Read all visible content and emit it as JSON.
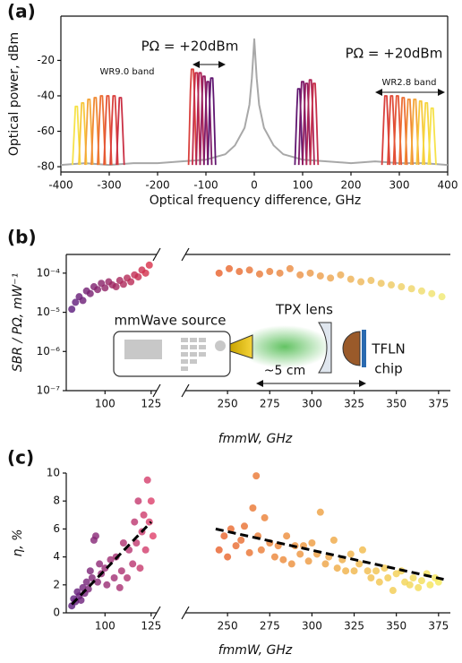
{
  "chart_data": [
    {
      "type": "line",
      "panel_label": "(a)",
      "xlabel": "Optical frequency difference, GHz",
      "ylabel": "Optical power, dBm",
      "xlim": [
        -400,
        400
      ],
      "ylim": [
        -83,
        5
      ],
      "xticks": [
        -400,
        -300,
        -200,
        -100,
        0,
        100,
        200,
        300,
        400
      ],
      "yticks": [
        -80,
        -60,
        -40,
        -20
      ],
      "annotations": [
        "PΩ = +20dBm",
        "WR9.0 band",
        "PΩ = +20dBm",
        "WR2.8 band"
      ],
      "series": [
        {
          "color": "#a8a8a8",
          "x": [
            -400,
            -350,
            -300,
            -250,
            -200,
            -150,
            -100,
            -60,
            -40,
            -20,
            -10,
            -5,
            0,
            5,
            10,
            20,
            40,
            60,
            100,
            150,
            200,
            250,
            300,
            350,
            400
          ],
          "values": [
            -79,
            -78,
            -79,
            -78,
            -78,
            -77,
            -76,
            -73,
            -68,
            -58,
            -45,
            -30,
            -8,
            -30,
            -45,
            -58,
            -68,
            -73,
            -76,
            -77,
            -78,
            -77,
            -78,
            -78,
            -79
          ]
        },
        {
          "color": "#f6e24a",
          "x": [
            -376,
            -372,
            -370,
            -366,
            -364,
            -360
          ],
          "values": [
            -79,
            -58,
            -46,
            -46,
            -58,
            -79
          ]
        },
        {
          "color": "#f7c83c",
          "x": [
            -363,
            -359,
            -357,
            -353,
            -351,
            -347
          ],
          "values": [
            -79,
            -56,
            -44,
            -44,
            -56,
            -79
          ]
        },
        {
          "color": "#f4a63a",
          "x": [
            -350,
            -346,
            -344,
            -340,
            -338,
            -334
          ],
          "values": [
            -79,
            -54,
            -42,
            -42,
            -54,
            -79
          ]
        },
        {
          "color": "#f08a34",
          "x": [
            -337,
            -333,
            -331,
            -327,
            -325,
            -321
          ],
          "values": [
            -79,
            -53,
            -41,
            -41,
            -53,
            -79
          ]
        },
        {
          "color": "#ec6f33",
          "x": [
            -324,
            -320,
            -318,
            -314,
            -312,
            -308
          ],
          "values": [
            -79,
            -52,
            -40,
            -40,
            -52,
            -79
          ]
        },
        {
          "color": "#e45436",
          "x": [
            -311,
            -307,
            -305,
            -301,
            -299,
            -295
          ],
          "values": [
            -79,
            -52,
            -40,
            -40,
            -52,
            -79
          ]
        },
        {
          "color": "#d9403d",
          "x": [
            -298,
            -294,
            -292,
            -288,
            -286,
            -282
          ],
          "values": [
            -79,
            -52,
            -40,
            -40,
            -52,
            -79
          ]
        },
        {
          "color": "#ca3145",
          "x": [
            -285,
            -281,
            -279,
            -275,
            -273,
            -269
          ],
          "values": [
            -79,
            -53,
            -41,
            -41,
            -53,
            -79
          ]
        },
        {
          "color": "#d9403d",
          "x": [
            -136,
            -132,
            -130,
            -126,
            -124,
            -120
          ],
          "values": [
            -79,
            -37,
            -25,
            -25,
            -37,
            -79
          ]
        },
        {
          "color": "#c62f4a",
          "x": [
            -128,
            -124,
            -122,
            -118,
            -116,
            -112
          ],
          "values": [
            -79,
            -39,
            -27,
            -27,
            -39,
            -79
          ]
        },
        {
          "color": "#ae2556",
          "x": [
            -120,
            -116,
            -114,
            -110,
            -108,
            -104
          ],
          "values": [
            -79,
            -39,
            -27,
            -27,
            -39,
            -79
          ]
        },
        {
          "color": "#951e60",
          "x": [
            -112,
            -108,
            -106,
            -102,
            -100,
            -96
          ],
          "values": [
            -79,
            -41,
            -29,
            -29,
            -41,
            -79
          ]
        },
        {
          "color": "#7c1a69",
          "x": [
            -104,
            -100,
            -98,
            -94,
            -92,
            -88
          ],
          "values": [
            -79,
            -44,
            -32,
            -32,
            -44,
            -79
          ]
        },
        {
          "color": "#601670",
          "x": [
            -96,
            -92,
            -90,
            -86,
            -84,
            -80
          ],
          "values": [
            -79,
            -42,
            -30,
            -30,
            -42,
            -79
          ]
        },
        {
          "color": "#601670",
          "x": [
            84,
            88,
            90,
            94,
            96,
            100
          ],
          "values": [
            -79,
            -48,
            -36,
            -36,
            -48,
            -79
          ]
        },
        {
          "color": "#7c1a69",
          "x": [
            92,
            96,
            98,
            102,
            104,
            108
          ],
          "values": [
            -79,
            -44,
            -32,
            -32,
            -44,
            -79
          ]
        },
        {
          "color": "#951e60",
          "x": [
            100,
            104,
            106,
            110,
            112,
            116
          ],
          "values": [
            -79,
            -45,
            -33,
            -33,
            -45,
            -79
          ]
        },
        {
          "color": "#ae2556",
          "x": [
            108,
            112,
            114,
            118,
            120,
            124
          ],
          "values": [
            -79,
            -43,
            -31,
            -31,
            -43,
            -79
          ]
        },
        {
          "color": "#c62f4a",
          "x": [
            116,
            120,
            122,
            126,
            128,
            132
          ],
          "values": [
            -79,
            -45,
            -33,
            -33,
            -45,
            -79
          ]
        },
        {
          "color": "#d9403d",
          "x": [
            264,
            268,
            270,
            274,
            276,
            280
          ],
          "values": [
            -79,
            -52,
            -40,
            -40,
            -52,
            -79
          ]
        },
        {
          "color": "#e04a38",
          "x": [
            276,
            280,
            282,
            286,
            288,
            292
          ],
          "values": [
            -79,
            -52,
            -40,
            -40,
            -52,
            -79
          ]
        },
        {
          "color": "#e45436",
          "x": [
            288,
            292,
            294,
            298,
            300,
            304
          ],
          "values": [
            -79,
            -52,
            -40,
            -40,
            -52,
            -79
          ]
        },
        {
          "color": "#ec6f33",
          "x": [
            300,
            304,
            306,
            310,
            312,
            316
          ],
          "values": [
            -79,
            -53,
            -41,
            -41,
            -53,
            -79
          ]
        },
        {
          "color": "#f08a34",
          "x": [
            312,
            316,
            318,
            322,
            324,
            328
          ],
          "values": [
            -79,
            -54,
            -42,
            -42,
            -54,
            -79
          ]
        },
        {
          "color": "#f4a63a",
          "x": [
            324,
            328,
            330,
            334,
            336,
            340
          ],
          "values": [
            -79,
            -54,
            -42,
            -42,
            -54,
            -79
          ]
        },
        {
          "color": "#f7c83c",
          "x": [
            336,
            340,
            342,
            346,
            348,
            352
          ],
          "values": [
            -79,
            -55,
            -43,
            -43,
            -55,
            -79
          ]
        },
        {
          "color": "#f6d640",
          "x": [
            348,
            352,
            354,
            358,
            360,
            364
          ],
          "values": [
            -79,
            -56,
            -44,
            -44,
            -56,
            -79
          ]
        },
        {
          "color": "#f6e24a",
          "x": [
            360,
            364,
            366,
            370,
            372,
            376
          ],
          "values": [
            -79,
            -59,
            -47,
            -47,
            -59,
            -79
          ]
        }
      ]
    },
    {
      "type": "scatter",
      "panel_label": "(b)",
      "xlabel": "fmmW, GHz",
      "ylabel": "SBR / PΩ, mW⁻¹",
      "log_y": true,
      "ylim": [
        1e-07,
        0.0003
      ],
      "yticks": [
        {
          "value": 1e-07,
          "label": "10⁻⁷"
        },
        {
          "value": 1e-06,
          "label": "10⁻⁶"
        },
        {
          "value": 1e-05,
          "label": "10⁻⁵"
        },
        {
          "value": 0.0001,
          "label": "10⁻⁴"
        }
      ],
      "x_segments": [
        {
          "xlim": [
            79,
            128
          ],
          "xticks": [
            100,
            125
          ]
        },
        {
          "xlim": [
            225,
            382
          ],
          "xticks": [
            250,
            275,
            300,
            325,
            350,
            375
          ]
        }
      ],
      "annotations": [
        "mmWave source",
        "TPX lens",
        "~5 cm",
        "TFLN",
        "chip"
      ],
      "series": [
        {
          "colors": [
            "#5a1a7c",
            "#d8304a"
          ],
          "x": [
            82,
            84,
            86,
            88,
            90,
            92,
            94,
            96,
            98,
            100,
            102,
            104,
            106,
            108,
            110,
            112,
            114,
            116,
            118,
            120,
            122,
            124
          ],
          "values": [
            1.2e-05,
            1.8e-05,
            2.5e-05,
            2e-05,
            3.5e-05,
            3e-05,
            4.5e-05,
            3.8e-05,
            5.5e-05,
            4.2e-05,
            6e-05,
            5e-05,
            4.5e-05,
            6.5e-05,
            5.2e-05,
            7.5e-05,
            6e-05,
            9e-05,
            8e-05,
            0.00012,
            0.0001,
            0.00016
          ]
        },
        {
          "colors": [
            "#e8602a",
            "#f0e870"
          ],
          "x": [
            245,
            251,
            257,
            263,
            269,
            275,
            281,
            287,
            293,
            299,
            305,
            311,
            317,
            323,
            329,
            335,
            341,
            347,
            353,
            359,
            365,
            371,
            377
          ],
          "values": [
            0.0001,
            0.00013,
            0.00011,
            0.00012,
            9.5e-05,
            0.00011,
            0.0001,
            0.00013,
            9e-05,
            0.0001,
            8.5e-05,
            7.5e-05,
            9e-05,
            7e-05,
            6e-05,
            6.5e-05,
            5.5e-05,
            5e-05,
            4.5e-05,
            4e-05,
            3.5e-05,
            3e-05,
            2.5e-05
          ]
        }
      ]
    },
    {
      "type": "scatter",
      "panel_label": "(c)",
      "xlabel": "fmmW, GHz",
      "ylabel": "η, %",
      "ylim": [
        0,
        10
      ],
      "yticks": [
        0,
        2,
        4,
        6,
        8,
        10
      ],
      "x_segments": [
        {
          "xlim": [
            79,
            128
          ],
          "xticks": [
            100,
            125
          ]
        },
        {
          "xlim": [
            225,
            382
          ],
          "xticks": [
            250,
            275,
            300,
            325,
            350,
            375
          ]
        }
      ],
      "series": [
        {
          "colors": [
            "#5a1a7c",
            "#e0406a"
          ],
          "x": [
            82,
            83,
            84,
            85,
            86,
            87,
            88,
            89,
            90,
            91,
            92,
            93,
            94,
            95,
            96,
            97,
            98,
            100,
            101,
            103,
            105,
            106,
            108,
            109,
            110,
            112,
            113,
            115,
            116,
            117,
            118,
            119,
            120,
            121,
            122,
            123,
            124,
            125,
            126
          ],
          "values": [
            0.5,
            1.0,
            0.8,
            1.5,
            1.2,
            0.9,
            1.8,
            1.4,
            2.2,
            1.7,
            3.0,
            2.5,
            5.2,
            5.5,
            2.2,
            3.5,
            2.8,
            3.2,
            2.0,
            3.8,
            2.5,
            4.0,
            1.8,
            3.0,
            5.0,
            2.5,
            4.5,
            3.5,
            6.5,
            5.0,
            8.0,
            3.2,
            5.8,
            7.0,
            4.5,
            9.5,
            6.5,
            8.0,
            5.5
          ]
        },
        {
          "colors": [
            "#e8602a",
            "#f5e85a"
          ],
          "x": [
            245,
            248,
            250,
            252,
            255,
            258,
            260,
            263,
            265,
            267,
            268,
            270,
            272,
            275,
            278,
            280,
            283,
            285,
            288,
            290,
            293,
            295,
            298,
            300,
            303,
            305,
            308,
            310,
            313,
            315,
            318,
            320,
            323,
            325,
            328,
            330,
            333,
            335,
            338,
            340,
            343,
            345,
            348,
            350,
            353,
            355,
            358,
            360,
            363,
            365,
            368,
            370,
            373,
            375
          ],
          "values": [
            4.5,
            5.5,
            4.0,
            6.0,
            4.8,
            5.2,
            6.2,
            4.3,
            7.5,
            9.8,
            5.5,
            4.5,
            6.8,
            5.0,
            4.0,
            4.8,
            3.8,
            5.5,
            3.5,
            4.8,
            4.2,
            4.8,
            3.7,
            5.0,
            4.2,
            7.2,
            3.5,
            4.0,
            5.2,
            3.2,
            3.8,
            3.0,
            4.2,
            3.0,
            3.5,
            4.5,
            3.0,
            2.5,
            3.0,
            2.2,
            3.2,
            2.5,
            1.6,
            2.8,
            3.0,
            2.2,
            2.0,
            2.5,
            1.8,
            2.3,
            2.8,
            2.0,
            2.5,
            2.2
          ]
        },
        {
          "color": "#000000",
          "line_style": "dashed",
          "x": [
            82,
            125
          ],
          "values": [
            0.6,
            6.5
          ]
        },
        {
          "color": "#000000",
          "line_style": "dashed",
          "x": [
            243,
            378
          ],
          "values": [
            6.0,
            2.4
          ]
        }
      ]
    }
  ]
}
